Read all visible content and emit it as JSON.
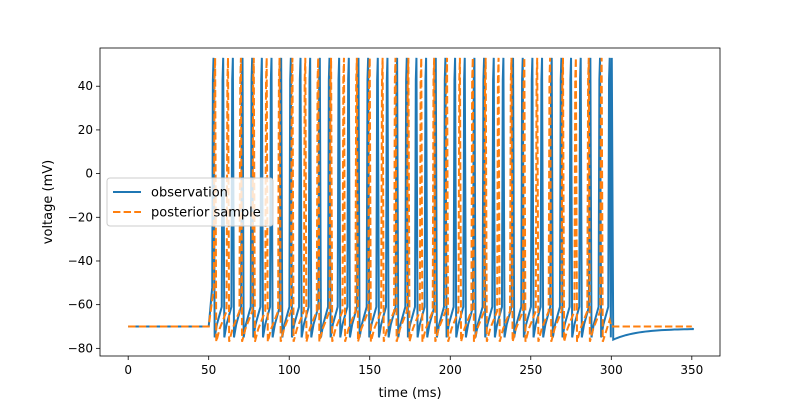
{
  "chart_data": {
    "type": "line",
    "title": "",
    "xlabel": "time (ms)",
    "ylabel": "voltage (mV)",
    "xlim": [
      -17.5,
      367.5
    ],
    "ylim": [
      -83.5,
      57.5
    ],
    "xticks": [
      0,
      50,
      100,
      150,
      200,
      250,
      300,
      350
    ],
    "yticks": [
      -80,
      -60,
      -40,
      -20,
      0,
      20,
      40
    ],
    "grid": false,
    "legend_position": "center-left",
    "stimulus": {
      "on": 50,
      "off": 300
    },
    "series": [
      {
        "name": "observation",
        "color": "#1f77b4",
        "dash": "solid",
        "rest": -70,
        "spike_peak": 53,
        "trough": -75,
        "spike_times": [
          53,
          59,
          65,
          71,
          77,
          83,
          89,
          95,
          101,
          107,
          113,
          119,
          125,
          131,
          137,
          143,
          149,
          155,
          161,
          167,
          173,
          179,
          185,
          191,
          197,
          203,
          209,
          215,
          221,
          227,
          233,
          239,
          245,
          251,
          257,
          263,
          269,
          275,
          281,
          287,
          293,
          299
        ],
        "post_stim_trough": -76,
        "end_value": -71
      },
      {
        "name": "posterior sample",
        "color": "#ff7f0e",
        "dash": "dashed",
        "rest": -70,
        "spike_peak": 53,
        "trough": -77,
        "spike_times": [
          54,
          62,
          70,
          78,
          86,
          94,
          102,
          110,
          118,
          126,
          134,
          142,
          150,
          158,
          166,
          174,
          182,
          190,
          198,
          206,
          214,
          222,
          230,
          238,
          246,
          254,
          262,
          270,
          278,
          286,
          294
        ],
        "end_value": -70
      }
    ]
  }
}
